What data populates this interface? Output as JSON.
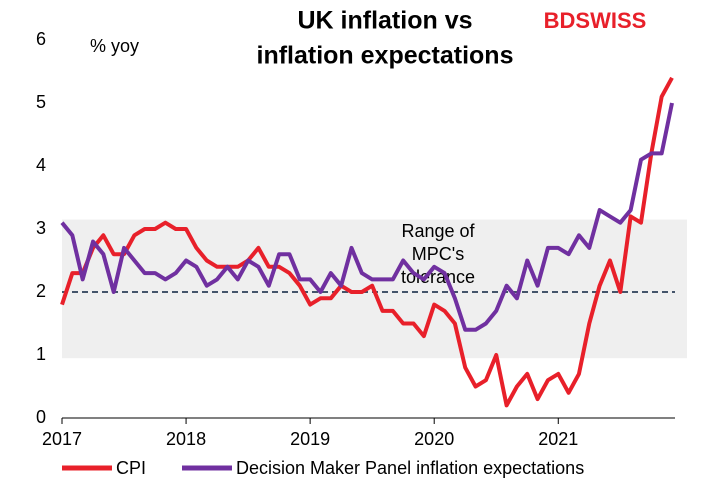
{
  "chart_data": {
    "type": "line",
    "title": [
      "UK inflation vs",
      "inflation expectations"
    ],
    "logo": "BDSWISS",
    "y_label": "% yoy",
    "annotation": [
      "Range of",
      "MPC's",
      "tolerance"
    ],
    "categories": [
      "2017",
      null,
      null,
      null,
      null,
      null,
      null,
      null,
      null,
      null,
      null,
      null,
      "2018",
      null,
      null,
      null,
      null,
      null,
      null,
      null,
      null,
      null,
      null,
      null,
      "2019",
      null,
      null,
      null,
      null,
      null,
      null,
      null,
      null,
      null,
      null,
      null,
      "2020",
      null,
      null,
      null,
      null,
      null,
      null,
      null,
      null,
      null,
      null,
      null,
      "2021",
      null,
      null,
      null,
      null,
      null,
      null,
      null,
      null,
      null,
      null,
      null
    ],
    "series": [
      {
        "name": "CPI",
        "color": "#e8202a",
        "values": [
          1.8,
          2.3,
          2.3,
          2.7,
          2.9,
          2.6,
          2.6,
          2.9,
          3.0,
          3.0,
          3.1,
          3.0,
          3.0,
          2.7,
          2.5,
          2.4,
          2.4,
          2.4,
          2.5,
          2.7,
          2.4,
          2.4,
          2.3,
          2.1,
          1.8,
          1.9,
          1.9,
          2.1,
          2.0,
          2.0,
          2.1,
          1.7,
          1.7,
          1.5,
          1.5,
          1.3,
          1.8,
          1.7,
          1.5,
          0.8,
          0.5,
          0.6,
          1.0,
          0.2,
          0.5,
          0.7,
          0.3,
          0.6,
          0.7,
          0.4,
          0.7,
          1.5,
          2.1,
          2.5,
          2.0,
          3.2,
          3.1,
          4.2,
          5.1,
          5.4
        ]
      },
      {
        "name": "Decision Maker Panel inflation expectations",
        "color": "#7030a0",
        "values": [
          3.1,
          2.9,
          2.2,
          2.8,
          2.6,
          2.0,
          2.7,
          2.5,
          2.3,
          2.3,
          2.2,
          2.3,
          2.5,
          2.4,
          2.1,
          2.2,
          2.4,
          2.2,
          2.5,
          2.4,
          2.1,
          2.6,
          2.6,
          2.2,
          2.2,
          2.0,
          2.3,
          2.1,
          2.7,
          2.3,
          2.2,
          2.2,
          2.2,
          2.5,
          2.3,
          2.2,
          2.4,
          2.3,
          1.9,
          1.4,
          1.4,
          1.5,
          1.7,
          2.1,
          1.9,
          2.5,
          2.1,
          2.7,
          2.7,
          2.6,
          2.9,
          2.7,
          3.3,
          3.2,
          3.1,
          3.3,
          4.1,
          4.2,
          4.2,
          5.0
        ]
      }
    ],
    "band": [
      0.95,
      3.15
    ],
    "band_color": "#efefef",
    "target": 2,
    "target_color": "#44546a",
    "ylim": [
      0,
      6
    ],
    "yticks": [
      0,
      1,
      2,
      3,
      4,
      5,
      6
    ]
  }
}
